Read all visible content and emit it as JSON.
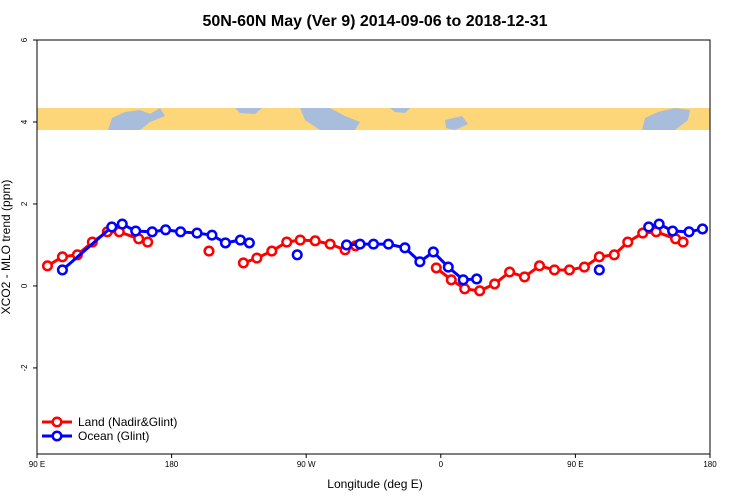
{
  "chart_data": {
    "type": "line",
    "title": "50N-60N May (Ver 9)   2014-09-06 to 2018-12-31",
    "x_label": "Longitude (deg E)",
    "y_label": "XCO2 - MLO trend (ppm)",
    "xlim": [
      90,
      540
    ],
    "xticks": [
      {
        "value": 90,
        "label": "90 E"
      },
      {
        "value": 180,
        "label": "180"
      },
      {
        "value": 270,
        "label": "90 W"
      },
      {
        "value": 360,
        "label": "0"
      },
      {
        "value": 450,
        "label": "90 E"
      },
      {
        "value": 540,
        "label": "180"
      }
    ],
    "ylim": [
      -4.1,
      6
    ],
    "yticks": [
      -2,
      0,
      2,
      4,
      6
    ],
    "legend": "bottomleft",
    "series": [
      {
        "name": "Land (Nadir&Glint)",
        "color": "#ff0000",
        "x": [
          97,
          107,
          117,
          127,
          137,
          145,
          158,
          164,
          null,
          205,
          null,
          228,
          237,
          247,
          257,
          266,
          276,
          286,
          296,
          303,
          null,
          357,
          367,
          376,
          386,
          396,
          406,
          416,
          426,
          436,
          446,
          456,
          466,
          476,
          485,
          495,
          504,
          517,
          522
        ],
        "values": [
          0.49,
          0.71,
          0.76,
          1.07,
          1.32,
          1.32,
          1.15,
          1.07,
          null,
          0.85,
          null,
          0.56,
          0.68,
          0.85,
          1.07,
          1.12,
          1.1,
          1.02,
          0.88,
          0.98,
          null,
          0.44,
          0.15,
          -0.07,
          -0.12,
          0.05,
          0.34,
          0.22,
          0.49,
          0.39,
          0.39,
          0.46,
          0.71,
          0.76,
          1.07,
          1.29,
          1.32,
          1.15,
          1.07
        ]
      },
      {
        "name": "Ocean (Glint)",
        "color": "#0000ff",
        "x": [
          107,
          140,
          147,
          156,
          167,
          176,
          186,
          197,
          207,
          216,
          226,
          232,
          null,
          264,
          null,
          297,
          306,
          315,
          325,
          336,
          346,
          355,
          365,
          375,
          384,
          null,
          466,
          null,
          499,
          506,
          515,
          526,
          535
        ],
        "values": [
          0.39,
          1.44,
          1.51,
          1.34,
          1.32,
          1.37,
          1.32,
          1.29,
          1.24,
          1.05,
          1.12,
          1.05,
          null,
          0.76,
          null,
          1.0,
          1.02,
          1.02,
          1.02,
          0.93,
          0.59,
          0.83,
          0.46,
          0.15,
          0.17,
          null,
          0.39,
          null,
          1.44,
          1.51,
          1.34,
          1.32,
          1.39
        ]
      }
    ]
  }
}
